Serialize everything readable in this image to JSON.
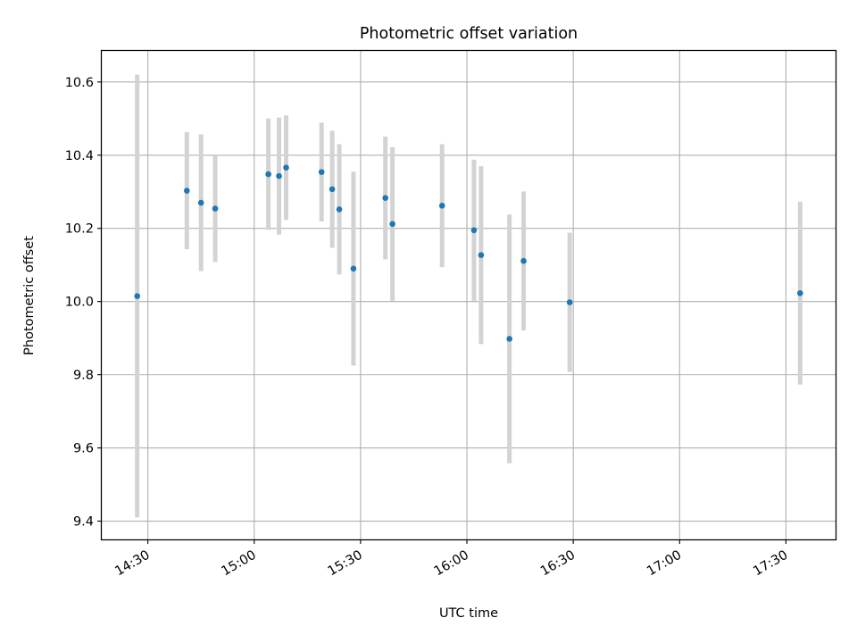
{
  "chart_data": {
    "type": "scatter",
    "title": "Photometric offset variation",
    "xlabel": "UTC time",
    "ylabel": "Photometric offset",
    "xlim": [
      "14:17",
      "17:44"
    ],
    "ylim": [
      9.35,
      10.685
    ],
    "grid": true,
    "x_ticks": [
      "14:30",
      "15:00",
      "15:30",
      "16:00",
      "16:30",
      "17:00",
      "17:30"
    ],
    "y_ticks": [
      "9.4",
      "9.6",
      "9.8",
      "10.0",
      "10.2",
      "10.4",
      "10.6"
    ],
    "colors": {
      "point": "#1f77b4",
      "errorbar": "#d3d3d3",
      "grid": "#b0b0b0"
    },
    "series": [
      {
        "points": [
          {
            "t": "14:27",
            "y": 10.015,
            "err": 0.605
          },
          {
            "t": "14:41",
            "y": 10.303,
            "err": 0.16
          },
          {
            "t": "14:45",
            "y": 10.27,
            "err": 0.187
          },
          {
            "t": "14:49",
            "y": 10.254,
            "err": 0.146
          },
          {
            "t": "15:04",
            "y": 10.348,
            "err": 0.152
          },
          {
            "t": "15:07",
            "y": 10.343,
            "err": 0.16
          },
          {
            "t": "15:09",
            "y": 10.366,
            "err": 0.143
          },
          {
            "t": "15:19",
            "y": 10.354,
            "err": 0.135
          },
          {
            "t": "15:22",
            "y": 10.307,
            "err": 0.16
          },
          {
            "t": "15:24",
            "y": 10.252,
            "err": 0.178
          },
          {
            "t": "15:28",
            "y": 10.09,
            "err": 0.265
          },
          {
            "t": "15:37",
            "y": 10.283,
            "err": 0.168
          },
          {
            "t": "15:39",
            "y": 10.212,
            "err": 0.21
          },
          {
            "t": "15:53",
            "y": 10.262,
            "err": 0.168
          },
          {
            "t": "16:02",
            "y": 10.195,
            "err": 0.193
          },
          {
            "t": "16:04",
            "y": 10.127,
            "err": 0.243
          },
          {
            "t": "16:12",
            "y": 9.898,
            "err": 0.34
          },
          {
            "t": "16:16",
            "y": 10.111,
            "err": 0.19
          },
          {
            "t": "16:29",
            "y": 9.998,
            "err": 0.19
          },
          {
            "t": "17:34",
            "y": 10.023,
            "err": 0.25
          }
        ]
      }
    ]
  }
}
